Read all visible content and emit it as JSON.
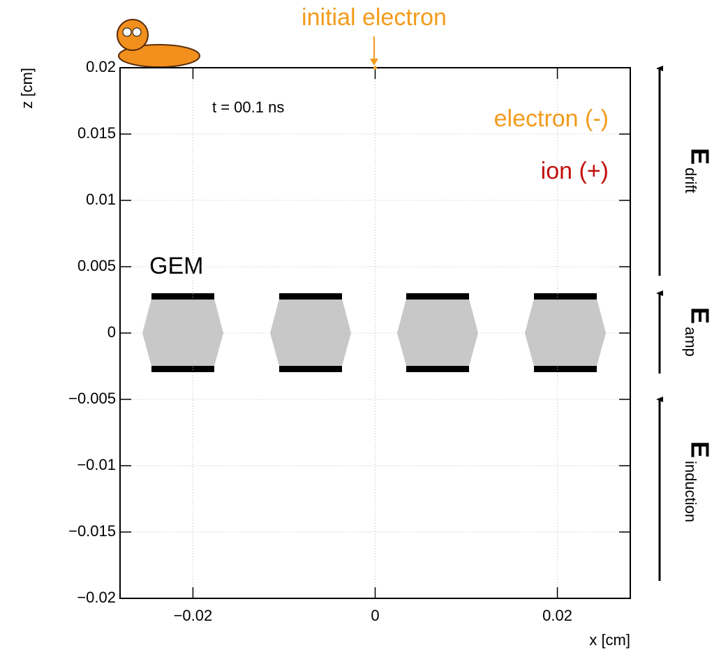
{
  "chart_data": {
    "type": "scatter",
    "title": "initial electron",
    "annotation": "t = 00.1 ns",
    "gem_label": "GEM",
    "x_label": "x [cm]",
    "y_label": "z [cm]",
    "xlim": [
      -0.028,
      0.028
    ],
    "ylim": [
      -0.02,
      0.02
    ],
    "xticks": [
      {
        "value": -0.02,
        "label": "−0.02"
      },
      0,
      0.02
    ],
    "yticks": [
      {
        "value": -0.02,
        "label": "−0.02"
      },
      {
        "value": -0.015,
        "label": "−0.015"
      },
      {
        "value": -0.01,
        "label": "−0.01"
      },
      {
        "value": -0.005,
        "label": "−0.005"
      },
      0,
      0.005,
      0.01,
      0.015,
      0.02
    ],
    "grid": true,
    "series": [
      {
        "name": "electron (-)",
        "color": "#f39b1c",
        "x": [
          0
        ],
        "values": [
          0.02
        ]
      },
      {
        "name": "ion (+)",
        "color": "#c0100e",
        "x": [],
        "values": []
      }
    ],
    "fields": [
      {
        "symbol": "E",
        "sub": "drift"
      },
      {
        "symbol": "E",
        "sub": "amp"
      },
      {
        "symbol": "E",
        "sub": "induction"
      }
    ]
  }
}
